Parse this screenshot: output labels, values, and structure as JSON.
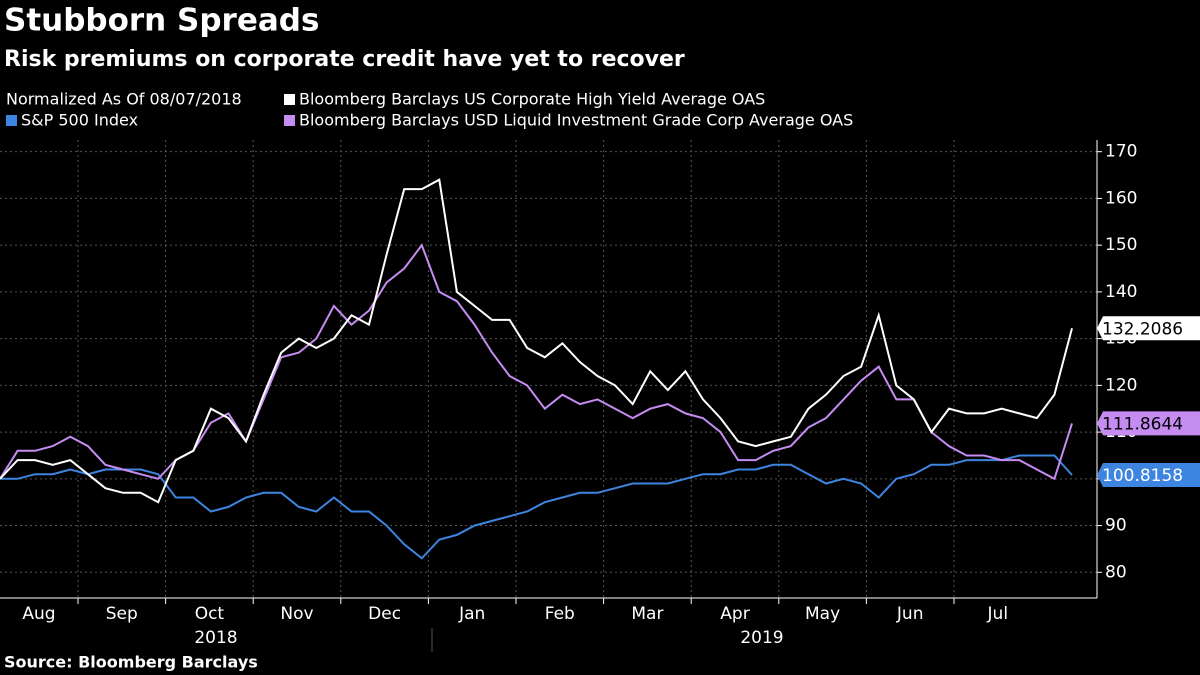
{
  "chart_data": {
    "type": "line",
    "title": "Stubborn Spreads",
    "subtitle": "Risk premiums on corporate credit have yet to recover",
    "note": "Normalized As Of 08/07/2018",
    "source": "Source: Bloomberg Barclays",
    "months": [
      "Aug",
      "Sep",
      "Oct",
      "Nov",
      "Dec",
      "Jan",
      "Feb",
      "Mar",
      "Apr",
      "May",
      "Jun",
      "Jul"
    ],
    "years": [
      "2018",
      "2019"
    ],
    "ylim": [
      74.5,
      172.5
    ],
    "yticks": [
      80,
      90,
      100,
      110,
      120,
      130,
      140,
      150,
      160,
      170
    ],
    "grid": true,
    "series": [
      {
        "name": "Bloomberg Barclays US Corporate High Yield Average OAS",
        "color": "#ffffff",
        "values": [
          100,
          104,
          104,
          103,
          104,
          101,
          98,
          97,
          97,
          95,
          104,
          106,
          115,
          113,
          108,
          118,
          127,
          130,
          128,
          130,
          135,
          133,
          148,
          162,
          162,
          164,
          140,
          137,
          134,
          134,
          128,
          126,
          129,
          125,
          122,
          120,
          116,
          123,
          119,
          123,
          117,
          113,
          108,
          107,
          108,
          109,
          115,
          118,
          122,
          124,
          135,
          120,
          117,
          110,
          115,
          114,
          114,
          115,
          114,
          113,
          118,
          132.2086
        ]
      },
      {
        "name": "S&P 500 Index",
        "color": "#3d85e0",
        "values": [
          100,
          100,
          101,
          101,
          102,
          101,
          102,
          102,
          102,
          101,
          96,
          96,
          93,
          94,
          96,
          97,
          97,
          94,
          93,
          96,
          93,
          93,
          90,
          86,
          83,
          87,
          88,
          90,
          91,
          92,
          93,
          95,
          96,
          97,
          97,
          98,
          99,
          99,
          99,
          100,
          101,
          101,
          102,
          102,
          103,
          103,
          101,
          99,
          100,
          99,
          96,
          100,
          101,
          103,
          103,
          104,
          104,
          104,
          105,
          105,
          105,
          100.8158
        ]
      },
      {
        "name": "Bloomberg Barclays USD Liquid Investment Grade Corp Average OAS",
        "color": "#c58cf2",
        "values": [
          100,
          106,
          106,
          107,
          109,
          107,
          103,
          102,
          101,
          100,
          104,
          106,
          112,
          114,
          108,
          117,
          126,
          127,
          130,
          137,
          133,
          136,
          142,
          145,
          150,
          140,
          138,
          133,
          127,
          122,
          120,
          115,
          118,
          116,
          117,
          115,
          113,
          115,
          116,
          114,
          113,
          110,
          104,
          104,
          106,
          107,
          111,
          113,
          117,
          121,
          124,
          117,
          117,
          110,
          107,
          105,
          105,
          104,
          104,
          102,
          100,
          111.8644
        ]
      }
    ]
  }
}
